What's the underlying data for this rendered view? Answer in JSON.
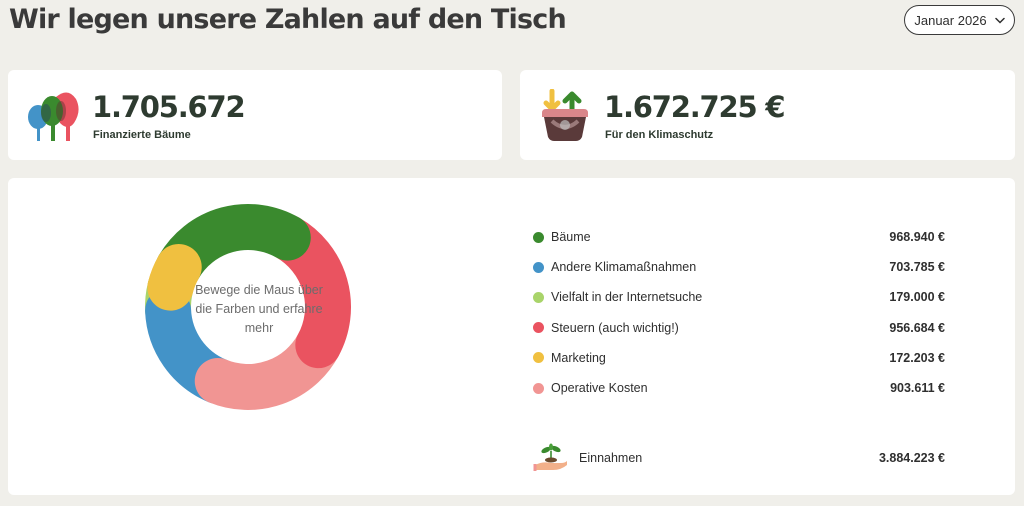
{
  "header": {
    "title": "Wir legen unsere Zahlen auf den Tisch",
    "month_select": "Januar 2026"
  },
  "stats": {
    "trees": {
      "value": "1.705.672",
      "label": "Finanzierte Bäume",
      "icon": "trees-icon"
    },
    "climate": {
      "value": "1.672.725 €",
      "label": "Für den Klimaschutz",
      "icon": "climate-basket-icon"
    }
  },
  "donut": {
    "center_text": "Bewege die Maus über die Farben und erfahre mehr"
  },
  "breakdown": [
    {
      "label": "Bäume",
      "value": "968.940 €",
      "color": "#3a8a2e"
    },
    {
      "label": "Andere Klimamaßnahmen",
      "value": "703.785 €",
      "color": "#4393c8"
    },
    {
      "label": "Vielfalt in der Internetsuche",
      "value": "179.000 €",
      "color": "#a9d46a"
    },
    {
      "label": "Steuern (auch wichtig!)",
      "value": "956.684 €",
      "color": "#ea5360"
    },
    {
      "label": "Marketing",
      "value": "172.203 €",
      "color": "#f0c040"
    },
    {
      "label": "Operative Kosten",
      "value": "903.611 €",
      "color": "#f19593"
    }
  ],
  "income": {
    "label": "Einnahmen",
    "value": "3.884.223 €",
    "icon": "seedling-hand-icon"
  }
}
